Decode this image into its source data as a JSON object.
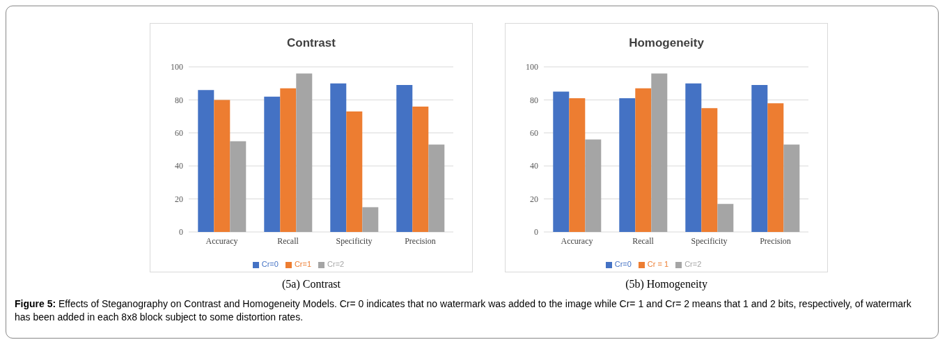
{
  "chart_data": [
    {
      "type": "bar",
      "title": "Contrast",
      "categories": [
        "Accuracy",
        "Recall",
        "Specificity",
        "Precision"
      ],
      "series": [
        {
          "name": "Cr=0",
          "color": "#4472c4",
          "values": [
            86,
            82,
            90,
            89
          ]
        },
        {
          "name": "Cr=1",
          "color": "#ed7d31",
          "values": [
            80,
            87,
            73,
            76
          ]
        },
        {
          "name": "Cr=2",
          "color": "#a5a5a5",
          "values": [
            55,
            96,
            15,
            53
          ]
        }
      ],
      "ylim": [
        0,
        100
      ],
      "yticks": [
        0,
        20,
        40,
        60,
        80,
        100
      ],
      "grid": "y",
      "legend": "bottom",
      "annotations": [
        "(5a)  Contrast",
        "Figure 5: Effects of Steganography on Contrast and Homogeneity Models. Cr= 0 indicates that no watermark was added to the image while Cr= 1 and Cr= 2 means that 1 and 2 bits, respectively, of watermark has been added in each 8x8 block subject to some distortion rates."
      ]
    },
    {
      "type": "bar",
      "title": "Homogeneity",
      "categories": [
        "Accuracy",
        "Recall",
        "Specificity",
        "Precision"
      ],
      "series": [
        {
          "name": "Cr=0",
          "color": "#4472c4",
          "values": [
            85,
            81,
            90,
            89
          ]
        },
        {
          "name": "Cr = 1",
          "color": "#ed7d31",
          "values": [
            81,
            87,
            75,
            78
          ]
        },
        {
          "name": "Cr=2",
          "color": "#a5a5a5",
          "values": [
            56,
            96,
            17,
            53
          ]
        }
      ],
      "ylim": [
        0,
        100
      ],
      "yticks": [
        0,
        20,
        40,
        60,
        80,
        100
      ],
      "grid": "y",
      "legend": "bottom",
      "annotations": [
        "(5b)  Homogeneity"
      ]
    }
  ]
}
